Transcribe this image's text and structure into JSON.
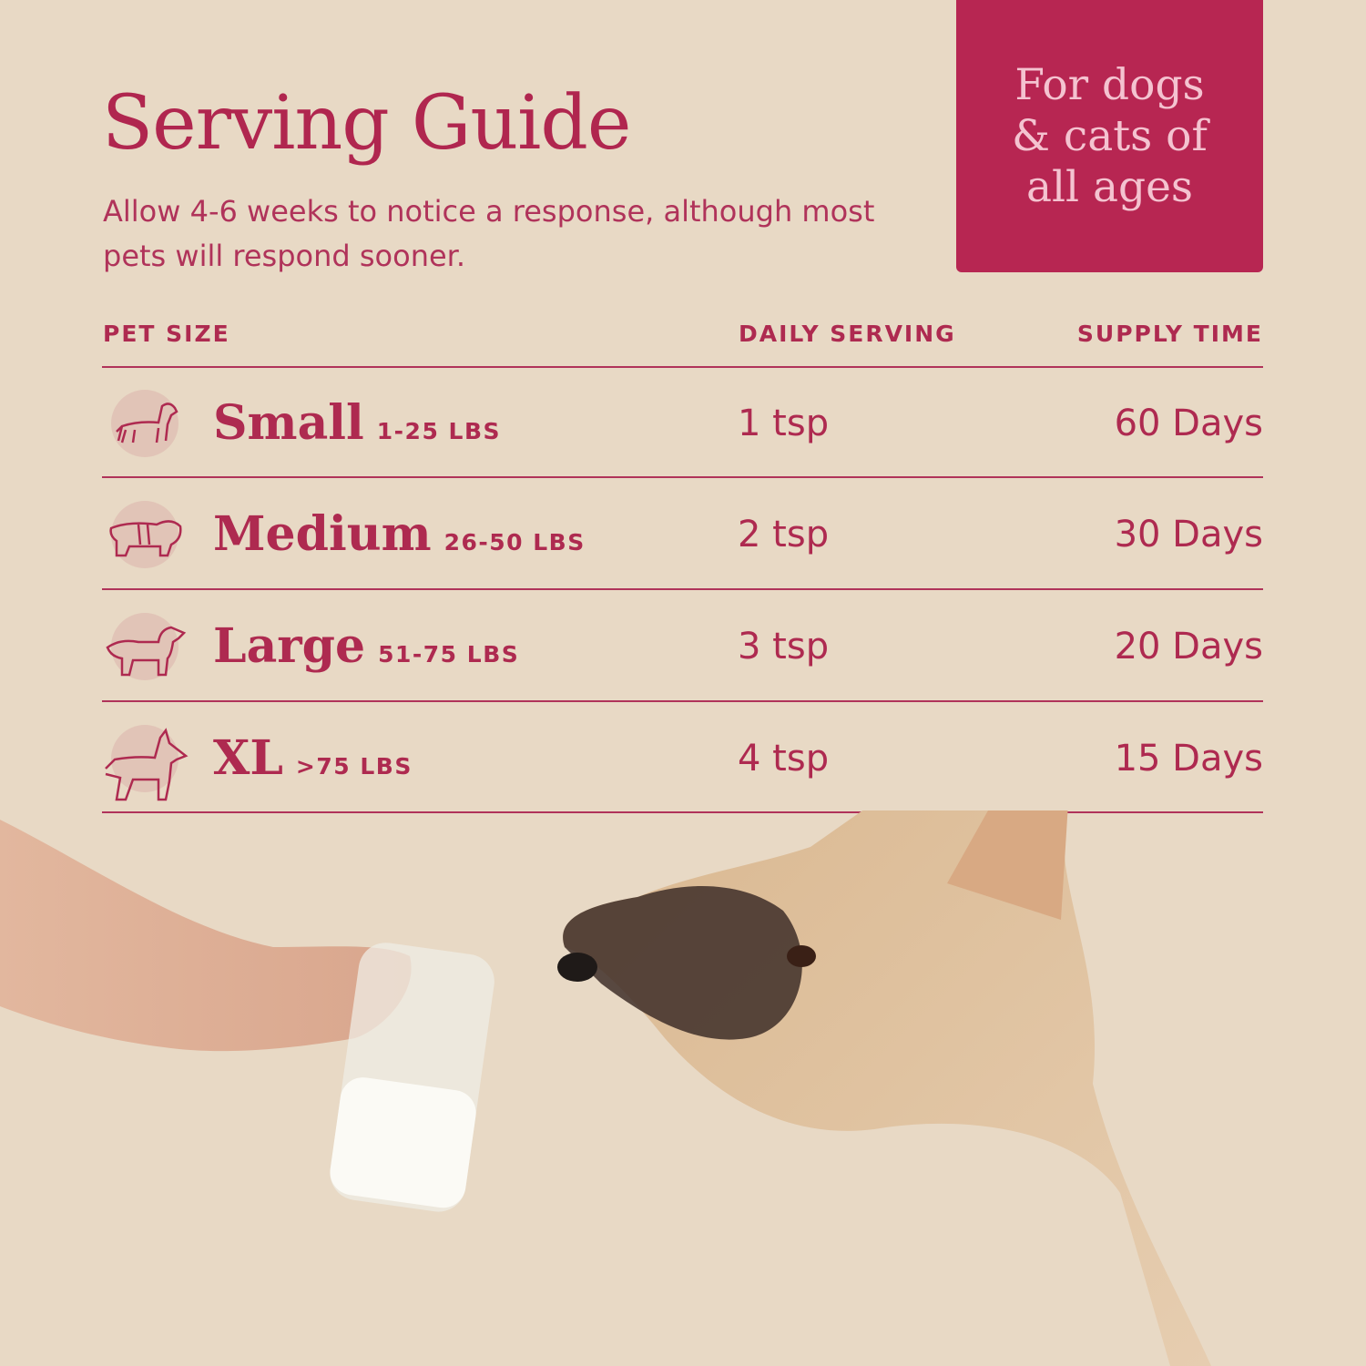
{
  "title": "Serving Guide",
  "subtitle": "Allow 4-6 weeks to notice a response, although most pets will respond sooner.",
  "badge": {
    "text": "For dogs\n& cats of\nall ages",
    "color": "#b72652"
  },
  "table": {
    "headers": {
      "size": "PET SIZE",
      "serving": "DAILY SERVING",
      "supply": "SUPPLY TIME"
    },
    "rows": [
      {
        "icon": "dachshund-icon",
        "size": "Small",
        "weight": "1-25 LBS",
        "serving": "1 tsp",
        "supply": "60 Days"
      },
      {
        "icon": "bulldog-icon",
        "size": "Medium",
        "weight": "26-50 LBS",
        "serving": "2 tsp",
        "supply": "30 Days"
      },
      {
        "icon": "spaniel-icon",
        "size": "Large",
        "weight": "51-75 LBS",
        "serving": "3 tsp",
        "supply": "20 Days"
      },
      {
        "icon": "doberman-icon",
        "size": "XL",
        "weight": ">75 LBS",
        "serving": "4 tsp",
        "supply": "15 Days"
      }
    ]
  },
  "colors": {
    "background": "#e8d9c5",
    "text": "#ae2a50",
    "badge_text": "#f4c3d0"
  }
}
